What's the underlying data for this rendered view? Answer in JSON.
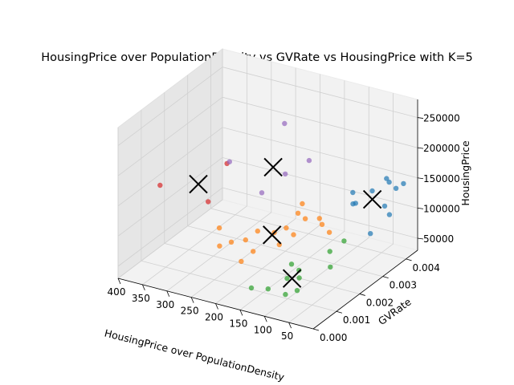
{
  "chart_data": {
    "type": "scatter",
    "title": "HousingPrice over PopulationDensity vs GVRate vs HousingPrice with K=5",
    "xlabel": "HousingPrice over PopulationDensity",
    "ylabel": "GVRate",
    "zlabel": "HousingPrice",
    "projection": "3d",
    "grid": true,
    "legend": "none",
    "x_ticks": [
      "50",
      "100",
      "150",
      "200",
      "250",
      "300",
      "350",
      "400"
    ],
    "y_ticks": [
      "0.000",
      "0.001",
      "0.002",
      "0.003",
      "0.004"
    ],
    "z_ticks": [
      "50000",
      "100000",
      "150000",
      "200000",
      "250000"
    ],
    "xlim": [
      0,
      400
    ],
    "ylim": [
      0,
      0.0045
    ],
    "zlim": [
      30000,
      280000
    ],
    "colors": [
      "#1f77b4",
      "#ff7f0e",
      "#2ca02c",
      "#d62728",
      "#9467bd"
    ],
    "clusters": [
      {
        "color": "#1f77b4",
        "points": [
          [
            10,
            0.0041,
            150000
          ],
          [
            25,
            0.0038,
            158000
          ],
          [
            40,
            0.004,
            155000
          ],
          [
            20,
            0.0035,
            128000
          ],
          [
            55,
            0.0037,
            140000
          ],
          [
            15,
            0.0036,
            112000
          ],
          [
            70,
            0.0033,
            128000
          ],
          [
            85,
            0.0035,
            118000
          ],
          [
            90,
            0.0036,
            133000
          ],
          [
            35,
            0.0032,
            88000
          ],
          [
            30,
            0.0042,
            135000
          ]
        ]
      },
      {
        "color": "#ff7f0e",
        "points": [
          [
            240,
            0.001,
            118000
          ],
          [
            190,
            0.0016,
            106000
          ],
          [
            150,
            0.0025,
            118000
          ],
          [
            160,
            0.0022,
            100000
          ],
          [
            175,
            0.002,
            95000
          ],
          [
            165,
            0.003,
            116000
          ],
          [
            140,
            0.0026,
            108000
          ],
          [
            230,
            0.0008,
            96000
          ],
          [
            225,
            0.0012,
            92000
          ],
          [
            210,
            0.0015,
            90000
          ],
          [
            100,
            0.0028,
            88000
          ],
          [
            125,
            0.0029,
            103000
          ],
          [
            115,
            0.0028,
            98000
          ],
          [
            185,
            0.0013,
            82000
          ],
          [
            195,
            0.001,
            72000
          ],
          [
            155,
            0.0018,
            85000
          ],
          [
            145,
            0.0022,
            92000
          ]
        ]
      },
      {
        "color": "#2ca02c",
        "points": [
          [
            60,
            0.002,
            62000
          ],
          [
            80,
            0.0024,
            72000
          ],
          [
            100,
            0.0015,
            50000
          ],
          [
            90,
            0.0012,
            40000
          ],
          [
            110,
            0.0017,
            55000
          ],
          [
            120,
            0.0014,
            48000
          ],
          [
            130,
            0.0018,
            58000
          ],
          [
            70,
            0.0028,
            80000
          ],
          [
            160,
            0.0007,
            44000
          ],
          [
            95,
            0.0008,
            44000
          ],
          [
            140,
            0.001,
            38000
          ]
        ]
      },
      {
        "color": "#d62728",
        "points": [
          [
            390,
            0.0016,
            140000
          ],
          [
            310,
            0.0028,
            158000
          ],
          [
            320,
            0.0022,
            110000
          ]
        ]
      },
      {
        "color": "#9467bd",
        "points": [
          [
            230,
            0.0036,
            218000
          ],
          [
            300,
            0.0027,
            166000
          ],
          [
            200,
            0.003,
            158000
          ],
          [
            170,
            0.0034,
            175000
          ],
          [
            210,
            0.0022,
            148000
          ]
        ]
      }
    ],
    "centroids": [
      [
        50,
        0.0036,
        130000
      ],
      [
        170,
        0.0018,
        98000
      ],
      [
        110,
        0.0014,
        50000
      ],
      [
        340,
        0.0022,
        135000
      ],
      [
        220,
        0.0029,
        168000
      ]
    ]
  }
}
